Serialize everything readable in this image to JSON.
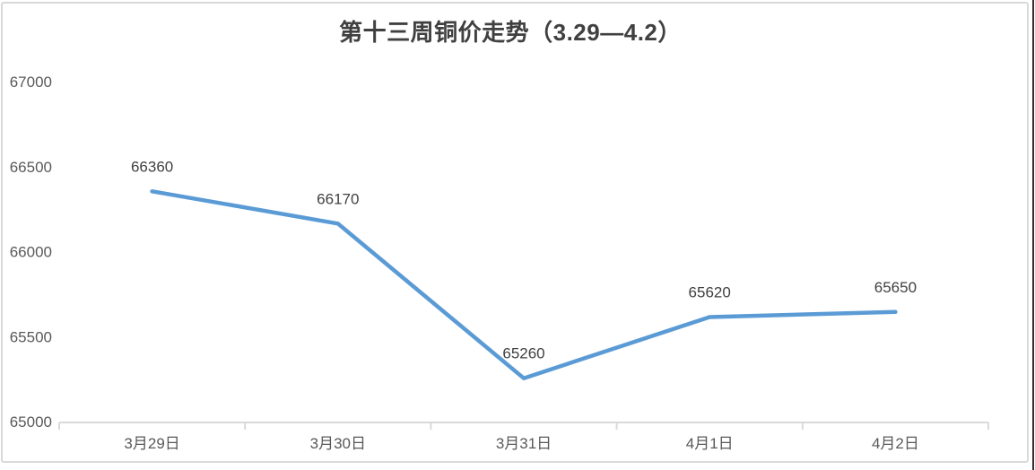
{
  "window": {
    "background": "#ffffff",
    "frame_border_color": "#d9d9d9",
    "right_edge_color": "#303030"
  },
  "chart_data": {
    "type": "line",
    "title": "第十三周铜价走势（3.29—4.2）",
    "categories": [
      "3月29日",
      "3月30日",
      "3月31日",
      "4月1日",
      "4月2日"
    ],
    "values": [
      66360,
      66170,
      65260,
      65620,
      65650
    ],
    "data_labels": [
      "66360",
      "66170",
      "65260",
      "65620",
      "65650"
    ],
    "xlabel": "",
    "ylabel": "",
    "ylim": [
      65000,
      67000
    ],
    "y_tick_step": 500,
    "y_tick_labels": [
      "67000",
      "66500",
      "66000",
      "65500",
      "65000"
    ],
    "grid": false,
    "legend": "none",
    "markers": "none",
    "colors": {
      "line": "#5b9bd5",
      "axis": "#d9d9d9",
      "data_label": "#404040",
      "tick_label": "#595959",
      "title": "#404040"
    }
  }
}
